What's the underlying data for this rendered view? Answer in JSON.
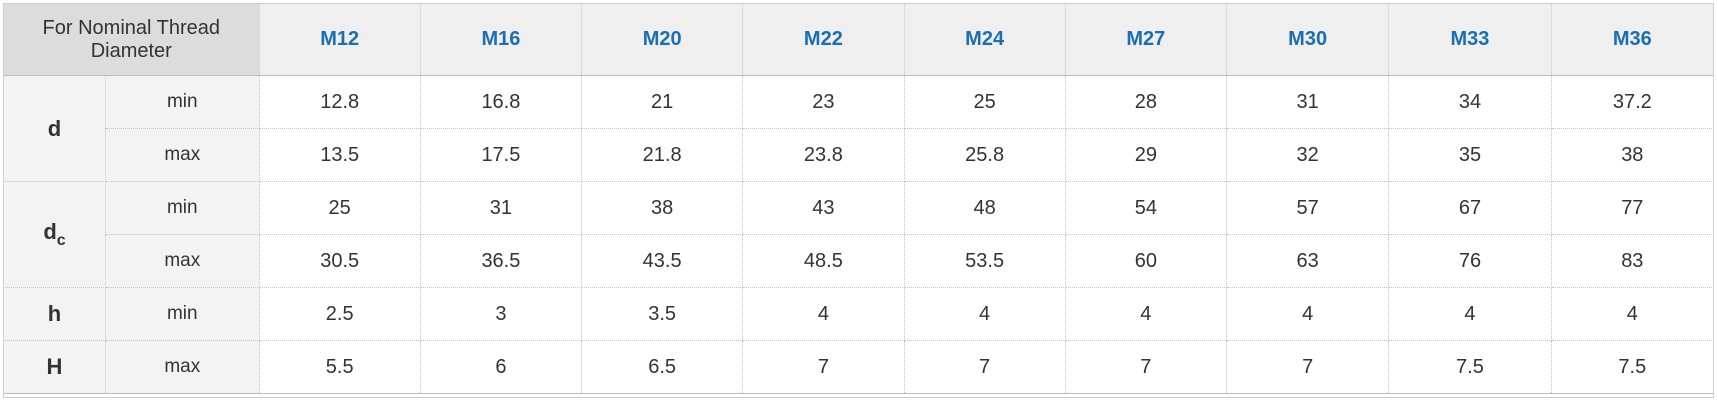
{
  "header": {
    "corner_label": "For Nominal Thread Diameter",
    "sizes": [
      "M12",
      "M16",
      "M20",
      "M22",
      "M24",
      "M27",
      "M30",
      "M33",
      "M36"
    ]
  },
  "params": [
    {
      "symbol": "d",
      "subscript": "",
      "rows": [
        {
          "bound": "min",
          "values": [
            "12.8",
            "16.8",
            "21",
            "23",
            "25",
            "28",
            "31",
            "34",
            "37.2"
          ]
        },
        {
          "bound": "max",
          "values": [
            "13.5",
            "17.5",
            "21.8",
            "23.8",
            "25.8",
            "29",
            "32",
            "35",
            "38"
          ]
        }
      ]
    },
    {
      "symbol": "d",
      "subscript": "c",
      "rows": [
        {
          "bound": "min",
          "values": [
            "25",
            "31",
            "38",
            "43",
            "48",
            "54",
            "57",
            "67",
            "77"
          ]
        },
        {
          "bound": "max",
          "values": [
            "30.5",
            "36.5",
            "43.5",
            "48.5",
            "53.5",
            "60",
            "63",
            "76",
            "83"
          ]
        }
      ]
    },
    {
      "symbol": "h",
      "subscript": "",
      "rows": [
        {
          "bound": "min",
          "values": [
            "2.5",
            "3",
            "3.5",
            "4",
            "4",
            "4",
            "4",
            "4",
            "4"
          ]
        }
      ]
    },
    {
      "symbol": "H",
      "subscript": "",
      "rows": [
        {
          "bound": "max",
          "values": [
            "5.5",
            "6",
            "6.5",
            "7",
            "7",
            "7",
            "7",
            "7.5",
            "7.5"
          ]
        }
      ]
    }
  ],
  "colors": {
    "size_header_text": "#1a6fb3",
    "corner_bg": "#dcdcdc",
    "header_bg": "#efefef",
    "label_bg": "#f3f3f3"
  }
}
